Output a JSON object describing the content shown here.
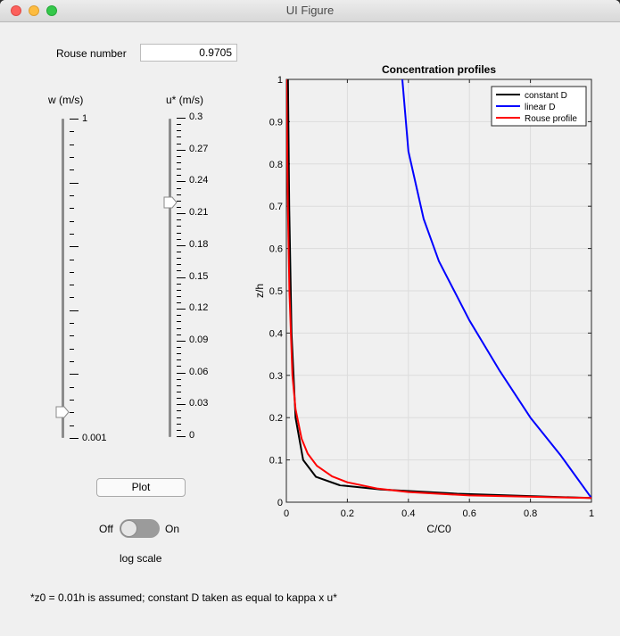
{
  "window": {
    "title": "UI Figure"
  },
  "rouse": {
    "label": "Rouse number",
    "value": "0.9705"
  },
  "w_slider": {
    "label": "w (m/s)",
    "max_label": "1",
    "min_label": "0.001",
    "value_fraction": 0.08
  },
  "u_slider": {
    "label": "u* (m/s)",
    "tick_labels": [
      "0.3",
      "0.27",
      "0.24",
      "0.21",
      "0.18",
      "0.15",
      "0.12",
      "0.09",
      "0.06",
      "0.03",
      "0"
    ],
    "value": 0.22
  },
  "plot_button": {
    "label": "Plot"
  },
  "log_toggle": {
    "off_label": "Off",
    "on_label": "On",
    "caption": "log scale",
    "state": "Off"
  },
  "footnote": "*z0 = 0.01h is assumed; constant D taken as equal to kappa x u*",
  "chart_data": {
    "type": "line",
    "title": "Concentration profiles",
    "xlabel": "C/C0",
    "ylabel": "z/h",
    "xlim": [
      0,
      1
    ],
    "ylim": [
      0,
      1
    ],
    "x_ticks": [
      "0",
      "0.2",
      "0.4",
      "0.6",
      "0.8",
      "1"
    ],
    "y_ticks": [
      "0",
      "0.1",
      "0.2",
      "0.3",
      "0.4",
      "0.5",
      "0.6",
      "0.7",
      "0.8",
      "0.9",
      "1"
    ],
    "grid": true,
    "legend_position": "top-right",
    "series": [
      {
        "name": "constant D",
        "color": "#000000",
        "x": [
          1,
          0.56,
          0.31,
          0.175,
          0.097,
          0.055,
          0.03,
          0.017,
          0.0095,
          0.0053
        ],
        "y": [
          0.01,
          0.02,
          0.03,
          0.04,
          0.06,
          0.1,
          0.2,
          0.4,
          0.7,
          1.0
        ]
      },
      {
        "name": "linear D",
        "color": "#0000ff",
        "x": [
          1,
          0.9,
          0.8,
          0.7,
          0.6,
          0.5,
          0.45,
          0.4,
          0.38
        ],
        "y": [
          0.01,
          0.11,
          0.2,
          0.31,
          0.43,
          0.57,
          0.67,
          0.83,
          1.0
        ]
      },
      {
        "name": "Rouse profile",
        "color": "#ff0000",
        "x": [
          1,
          0.6,
          0.4,
          0.3,
          0.2,
          0.15,
          0.1,
          0.07,
          0.05,
          0.03,
          0.02,
          0.01,
          0.005,
          0.0
        ],
        "y": [
          0.01,
          0.016,
          0.024,
          0.032,
          0.047,
          0.061,
          0.086,
          0.115,
          0.15,
          0.22,
          0.3,
          0.5,
          0.7,
          1.0
        ]
      }
    ]
  }
}
